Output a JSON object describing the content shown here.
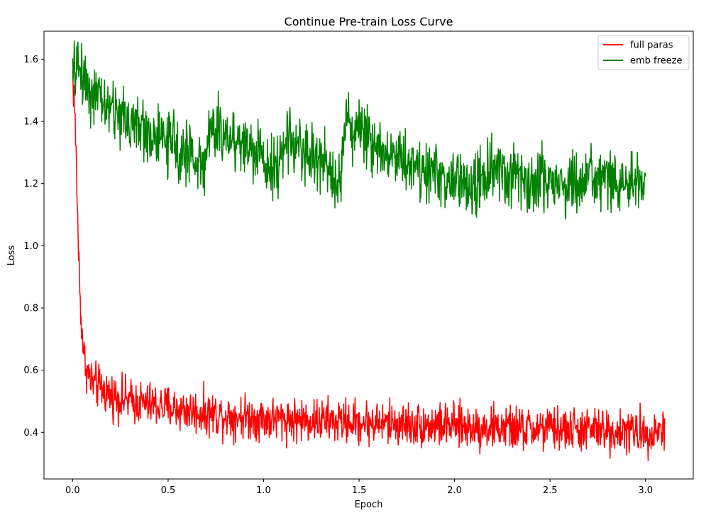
{
  "chart_data": {
    "type": "line",
    "title": "Continue Pre-train Loss Curve",
    "xlabel": "Epoch",
    "ylabel": "Loss",
    "xlim": [
      -0.15,
      3.25
    ],
    "ylim": [
      0.25,
      1.69
    ],
    "x_ticks": [
      0.0,
      0.5,
      1.0,
      1.5,
      2.0,
      2.5,
      3.0
    ],
    "x_tick_labels": [
      "0.0",
      "0.5",
      "1.0",
      "1.5",
      "2.0",
      "2.5",
      "3.0"
    ],
    "y_ticks": [
      0.4,
      0.6,
      0.8,
      1.0,
      1.2,
      1.4,
      1.6
    ],
    "y_tick_labels": [
      "0.4",
      "0.6",
      "0.8",
      "1.0",
      "1.2",
      "1.4",
      "1.6"
    ],
    "grid": false,
    "legend_position": "top-right",
    "series": [
      {
        "name": "full paras",
        "color": "#ff0000",
        "noise_amplitude": 0.035,
        "x": [
          0.0,
          0.01,
          0.02,
          0.03,
          0.04,
          0.05,
          0.06,
          0.08,
          0.1,
          0.15,
          0.2,
          0.3,
          0.4,
          0.5,
          0.6,
          0.7,
          0.8,
          0.9,
          1.0,
          1.2,
          1.4,
          1.6,
          1.8,
          2.0,
          2.2,
          2.4,
          2.6,
          2.8,
          3.0,
          3.1
        ],
        "y": [
          1.55,
          1.45,
          1.25,
          1.0,
          0.82,
          0.72,
          0.64,
          0.59,
          0.56,
          0.54,
          0.52,
          0.5,
          0.49,
          0.48,
          0.47,
          0.46,
          0.455,
          0.45,
          0.445,
          0.44,
          0.435,
          0.43,
          0.425,
          0.42,
          0.415,
          0.41,
          0.41,
          0.405,
          0.4,
          0.41
        ]
      },
      {
        "name": "emb freeze",
        "color": "#008000",
        "noise_amplitude": 0.05,
        "x": [
          0.0,
          0.02,
          0.05,
          0.1,
          0.2,
          0.3,
          0.4,
          0.5,
          0.6,
          0.69,
          0.7,
          0.75,
          0.9,
          1.0,
          1.1,
          1.11,
          1.2,
          1.3,
          1.41,
          1.42,
          1.5,
          1.6,
          1.8,
          2.0,
          2.1,
          2.2,
          2.4,
          2.6,
          2.8,
          3.0
        ],
        "y": [
          1.53,
          1.58,
          1.56,
          1.49,
          1.44,
          1.4,
          1.36,
          1.33,
          1.3,
          1.25,
          1.34,
          1.37,
          1.33,
          1.28,
          1.25,
          1.36,
          1.31,
          1.27,
          1.22,
          1.41,
          1.37,
          1.32,
          1.26,
          1.2,
          1.19,
          1.24,
          1.21,
          1.2,
          1.21,
          1.19
        ]
      }
    ]
  }
}
